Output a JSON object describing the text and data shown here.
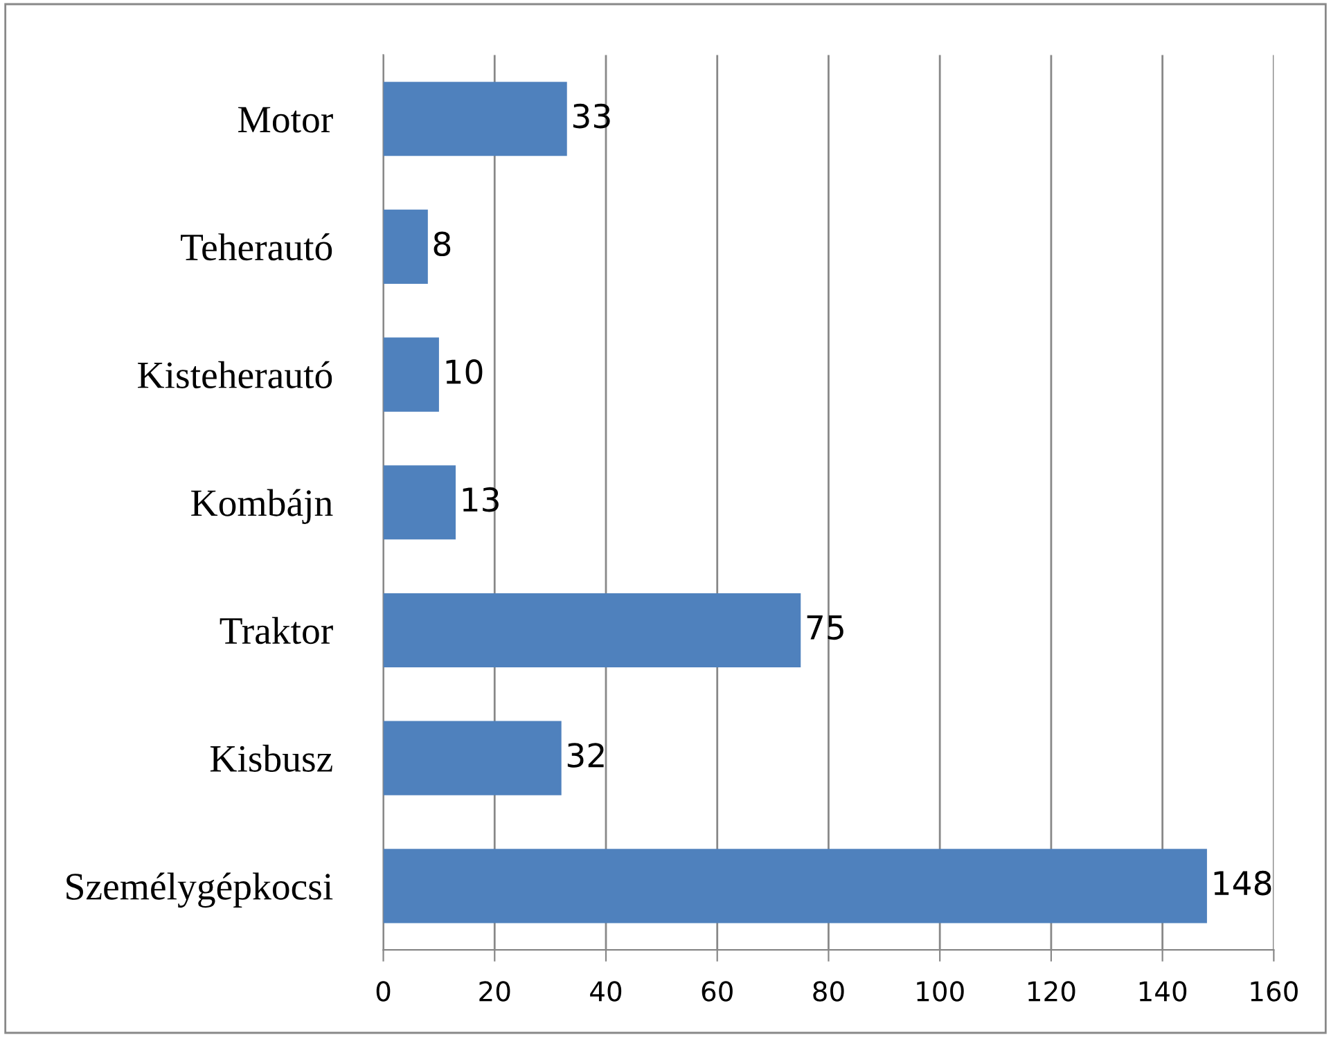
{
  "chart_data": {
    "type": "bar",
    "orientation": "horizontal",
    "categories": [
      "Motor",
      "Teherautó",
      "Kisteherautó",
      "Kombájn",
      "Traktor",
      "Kisbusz",
      "Személygépkocsi"
    ],
    "values": [
      33,
      8,
      10,
      13,
      75,
      32,
      148
    ],
    "color": "#4f81bd",
    "xlim": [
      0,
      160
    ],
    "xticks": [
      0,
      20,
      40,
      60,
      80,
      100,
      120,
      140,
      160
    ],
    "grid": "x",
    "data_labels": true
  }
}
